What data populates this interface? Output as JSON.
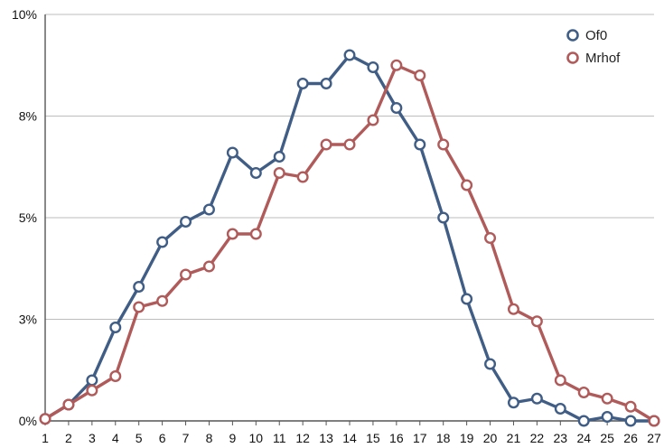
{
  "chart_data": {
    "type": "line",
    "x": [
      1,
      2,
      3,
      4,
      5,
      6,
      7,
      8,
      9,
      10,
      11,
      12,
      13,
      14,
      15,
      16,
      17,
      18,
      19,
      20,
      21,
      22,
      23,
      24,
      25,
      26,
      27
    ],
    "x_tick_labels": [
      "1",
      "2",
      "3",
      "4",
      "5",
      "6",
      "7",
      "8",
      "9",
      "10",
      "11",
      "12",
      "13",
      "14",
      "15",
      "16",
      "17",
      "18",
      "19",
      "20",
      "21",
      "22",
      "23",
      "24",
      "25",
      "26",
      "27"
    ],
    "xlim": [
      1,
      27
    ],
    "ylim": [
      0,
      10
    ],
    "y_ticks": [
      0,
      2.5,
      5,
      7.5,
      10
    ],
    "y_tick_labels": [
      "0%",
      "3%",
      "5%",
      "8%",
      "10%"
    ],
    "grid": "horizontal",
    "legend_position": "top-right",
    "series": [
      {
        "name": "Of0",
        "color": "#3f5d85",
        "values": [
          0.05,
          0.4,
          1.0,
          2.3,
          3.3,
          4.4,
          4.9,
          5.2,
          6.6,
          6.1,
          6.5,
          8.3,
          8.3,
          9.0,
          8.7,
          7.7,
          6.8,
          5.0,
          3.0,
          1.4,
          0.45,
          0.55,
          0.3,
          0.0,
          0.1,
          0.0,
          0.0
        ]
      },
      {
        "name": "Mrhof",
        "color": "#b05a5a",
        "values": [
          0.05,
          0.4,
          0.75,
          1.1,
          2.8,
          2.95,
          3.6,
          3.8,
          4.6,
          4.6,
          6.1,
          6.0,
          6.8,
          6.8,
          7.4,
          8.75,
          8.5,
          6.8,
          5.8,
          4.5,
          2.75,
          2.45,
          1.0,
          0.7,
          0.55,
          0.35,
          0.0
        ]
      }
    ]
  }
}
